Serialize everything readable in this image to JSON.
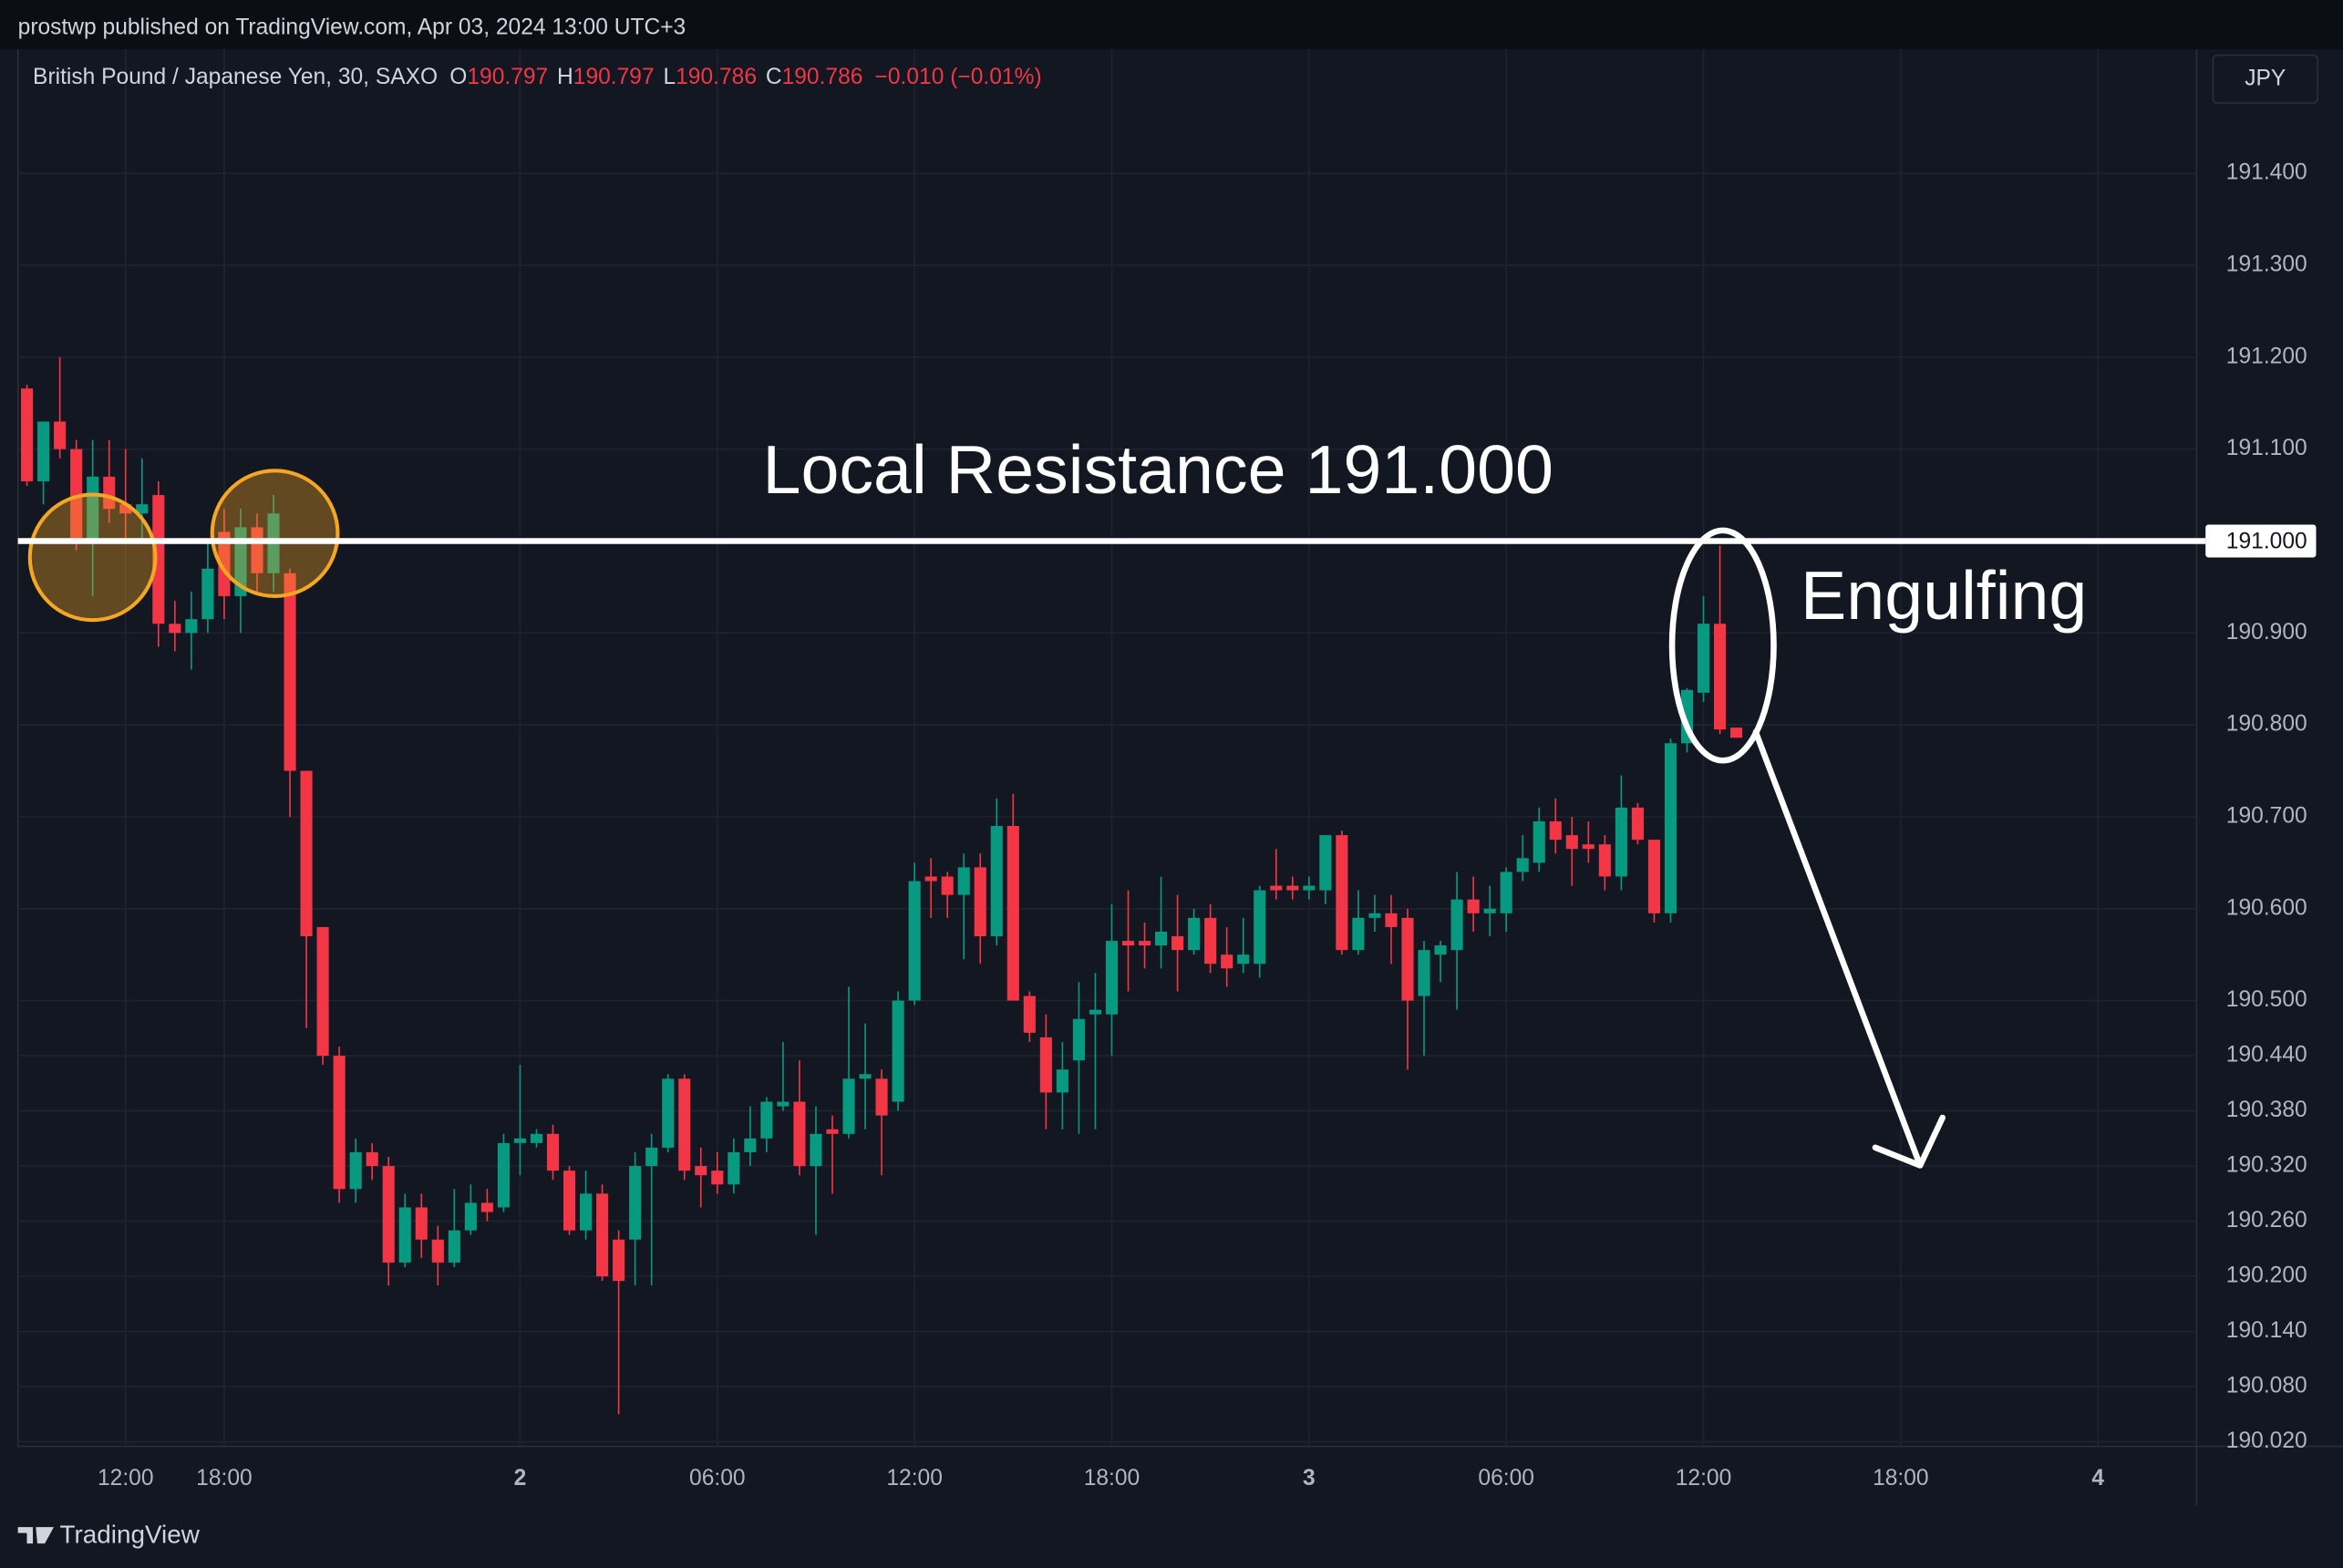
{
  "chart_data": {
    "type": "candlestick",
    "attribution": "prostwp published on TradingView.com, Apr 03, 2024 13:00 UTC+3",
    "symbol": "British Pound / Japanese Yen, 30, SAXO",
    "ohlc_header": [
      {
        "key": "O",
        "value": "190.797"
      },
      {
        "key": "H",
        "value": "190.797"
      },
      {
        "key": "L",
        "value": "190.786"
      },
      {
        "key": "C",
        "value": "190.786"
      }
    ],
    "change": "−0.010 (−0.01%)",
    "currency": "JPY",
    "brand": "TradingView",
    "up_color": "#089981",
    "down_color": "#f23645",
    "grid": true,
    "xlim": [
      -0.55,
      132
    ],
    "xticks": [
      {
        "value": 6,
        "label": "12:00"
      },
      {
        "value": 12,
        "label": "18:00"
      },
      {
        "value": 30,
        "label": "2"
      },
      {
        "value": 42,
        "label": "06:00"
      },
      {
        "value": 54,
        "label": "12:00"
      },
      {
        "value": 66,
        "label": "18:00"
      },
      {
        "value": 78,
        "label": "3"
      },
      {
        "value": 90,
        "label": "06:00"
      },
      {
        "value": 102,
        "label": "12:00"
      },
      {
        "value": 114,
        "label": "18:00"
      },
      {
        "value": 126,
        "label": "4"
      }
    ],
    "ylim": [
      190.015,
      191.535
    ],
    "yticks": [
      {
        "value": 191.4,
        "label": "191.400"
      },
      {
        "value": 191.3,
        "label": "191.300"
      },
      {
        "value": 191.2,
        "label": "191.200"
      },
      {
        "value": 191.1,
        "label": "191.100"
      },
      {
        "value": 190.9,
        "label": "190.900"
      },
      {
        "value": 190.8,
        "label": "190.800"
      },
      {
        "value": 190.7,
        "label": "190.700"
      },
      {
        "value": 190.6,
        "label": "190.600"
      },
      {
        "value": 190.5,
        "label": "190.500"
      },
      {
        "value": 190.44,
        "label": "190.440"
      },
      {
        "value": 190.38,
        "label": "190.380"
      },
      {
        "value": 190.32,
        "label": "190.320"
      },
      {
        "value": 190.26,
        "label": "190.260"
      },
      {
        "value": 190.2,
        "label": "190.200"
      },
      {
        "value": 190.14,
        "label": "190.140"
      },
      {
        "value": 190.08,
        "label": "190.080"
      },
      {
        "value": 190.02,
        "label": "190.020"
      }
    ],
    "resistance": {
      "value": 191,
      "label": "191.000"
    },
    "resistance_text": "Local Resistance 191.000",
    "pattern_text": "Engulfing",
    "open": [
      191.166,
      191.065,
      191.13,
      191.1,
      191.0,
      191.07,
      191.04,
      191.03,
      191.05,
      190.91,
      190.9,
      190.915,
      191.01,
      190.94,
      191.015,
      190.965,
      190.965,
      190.75,
      190.58,
      190.44,
      190.295,
      190.335,
      190.32,
      190.215,
      190.275,
      190.24,
      190.215,
      190.25,
      190.28,
      190.275,
      190.345,
      190.345,
      190.355,
      190.315,
      190.25,
      190.29,
      190.24,
      190.24,
      190.32,
      190.34,
      190.415,
      190.32,
      190.315,
      190.3,
      190.335,
      190.35,
      190.385,
      190.39,
      190.32,
      190.36,
      190.355,
      190.415,
      190.415,
      190.39,
      190.5,
      190.635,
      190.635,
      190.615,
      190.645,
      190.57,
      190.69,
      190.505,
      190.46,
      190.4,
      190.435,
      190.485,
      190.485,
      190.565,
      190.565,
      190.56,
      190.57,
      190.555,
      190.59,
      190.55,
      190.54,
      190.54,
      190.625,
      190.625,
      190.62,
      190.62,
      190.68,
      190.555,
      190.59,
      190.595,
      190.59,
      190.505,
      190.55,
      190.555,
      190.61,
      190.595,
      190.595,
      190.64,
      190.65,
      190.695,
      190.68,
      190.67,
      190.67,
      190.635,
      190.71,
      190.675,
      190.595,
      190.78,
      190.835,
      190.91,
      190.797
    ],
    "high": [
      191.17,
      191.13,
      191.2,
      191.11,
      191.11,
      191.11,
      191.1,
      191.09,
      191.065,
      190.935,
      190.945,
      191.0,
      191.035,
      191.035,
      191.03,
      191.05,
      190.97,
      190.75,
      190.58,
      190.45,
      190.35,
      190.345,
      190.33,
      190.29,
      190.29,
      190.255,
      190.295,
      190.3,
      190.295,
      190.355,
      190.43,
      190.36,
      190.365,
      190.32,
      190.315,
      190.3,
      190.25,
      190.335,
      190.355,
      190.42,
      190.42,
      190.34,
      190.335,
      190.35,
      190.385,
      190.395,
      190.455,
      190.435,
      190.385,
      190.375,
      190.515,
      190.475,
      190.425,
      190.51,
      190.65,
      190.655,
      190.64,
      190.66,
      190.66,
      190.72,
      190.725,
      190.51,
      190.485,
      190.455,
      190.52,
      190.53,
      190.605,
      190.62,
      190.585,
      190.635,
      190.615,
      190.6,
      190.605,
      190.58,
      190.59,
      190.625,
      190.665,
      190.635,
      190.635,
      190.68,
      190.685,
      190.62,
      190.615,
      190.615,
      190.6,
      190.565,
      190.565,
      190.64,
      190.635,
      190.625,
      190.645,
      190.68,
      190.71,
      190.72,
      190.7,
      190.695,
      190.68,
      190.745,
      190.715,
      190.675,
      190.785,
      190.84,
      190.94,
      190.995,
      190.797
    ],
    "low": [
      191.06,
      191.04,
      191.09,
      190.99,
      190.94,
      191.02,
      191.0,
      191.0,
      190.885,
      190.88,
      190.86,
      190.9,
      190.915,
      190.9,
      190.945,
      190.945,
      190.7,
      190.47,
      190.43,
      190.28,
      190.28,
      190.305,
      190.19,
      190.21,
      190.22,
      190.19,
      190.21,
      190.245,
      190.26,
      190.27,
      190.31,
      190.34,
      190.305,
      190.245,
      190.24,
      190.195,
      190.05,
      190.19,
      190.19,
      190.335,
      190.305,
      190.275,
      190.29,
      190.29,
      190.32,
      190.335,
      190.38,
      190.31,
      190.245,
      190.29,
      190.35,
      190.36,
      190.31,
      190.38,
      190.495,
      190.59,
      190.59,
      190.545,
      190.54,
      190.56,
      190.5,
      190.455,
      190.36,
      190.36,
      190.355,
      190.36,
      190.44,
      190.51,
      190.535,
      190.535,
      190.51,
      190.55,
      190.53,
      190.515,
      190.53,
      190.525,
      190.61,
      190.61,
      190.61,
      190.605,
      190.55,
      190.55,
      190.575,
      190.54,
      190.425,
      190.44,
      190.52,
      190.49,
      190.575,
      190.57,
      190.575,
      190.63,
      190.64,
      190.66,
      190.625,
      190.65,
      190.62,
      190.62,
      190.67,
      190.585,
      190.585,
      190.77,
      190.825,
      190.79,
      190.786
    ],
    "close": [
      191.065,
      191.13,
      191.1,
      191.0,
      191.07,
      191.035,
      191.03,
      191.04,
      190.91,
      190.9,
      190.915,
      190.97,
      190.94,
      191.015,
      190.965,
      191.03,
      190.75,
      190.57,
      190.44,
      190.295,
      190.335,
      190.32,
      190.215,
      190.275,
      190.24,
      190.215,
      190.25,
      190.28,
      190.27,
      190.345,
      190.35,
      190.355,
      190.315,
      190.25,
      190.29,
      190.2,
      190.195,
      190.32,
      190.34,
      190.415,
      190.315,
      190.31,
      190.3,
      190.335,
      190.35,
      190.39,
      190.39,
      190.32,
      190.355,
      190.355,
      190.415,
      190.42,
      190.375,
      190.5,
      190.63,
      190.63,
      190.615,
      190.645,
      190.57,
      190.69,
      190.5,
      190.465,
      190.4,
      190.425,
      190.48,
      190.49,
      190.565,
      190.56,
      190.56,
      190.575,
      190.555,
      190.59,
      190.54,
      190.535,
      190.55,
      190.62,
      190.62,
      190.62,
      190.625,
      190.68,
      190.555,
      190.59,
      190.595,
      190.58,
      190.5,
      190.555,
      190.56,
      190.61,
      190.595,
      190.6,
      190.64,
      190.655,
      190.695,
      190.675,
      190.665,
      190.665,
      190.635,
      190.71,
      190.675,
      190.595,
      190.78,
      190.838,
      190.91,
      190.795,
      190.786
    ]
  }
}
